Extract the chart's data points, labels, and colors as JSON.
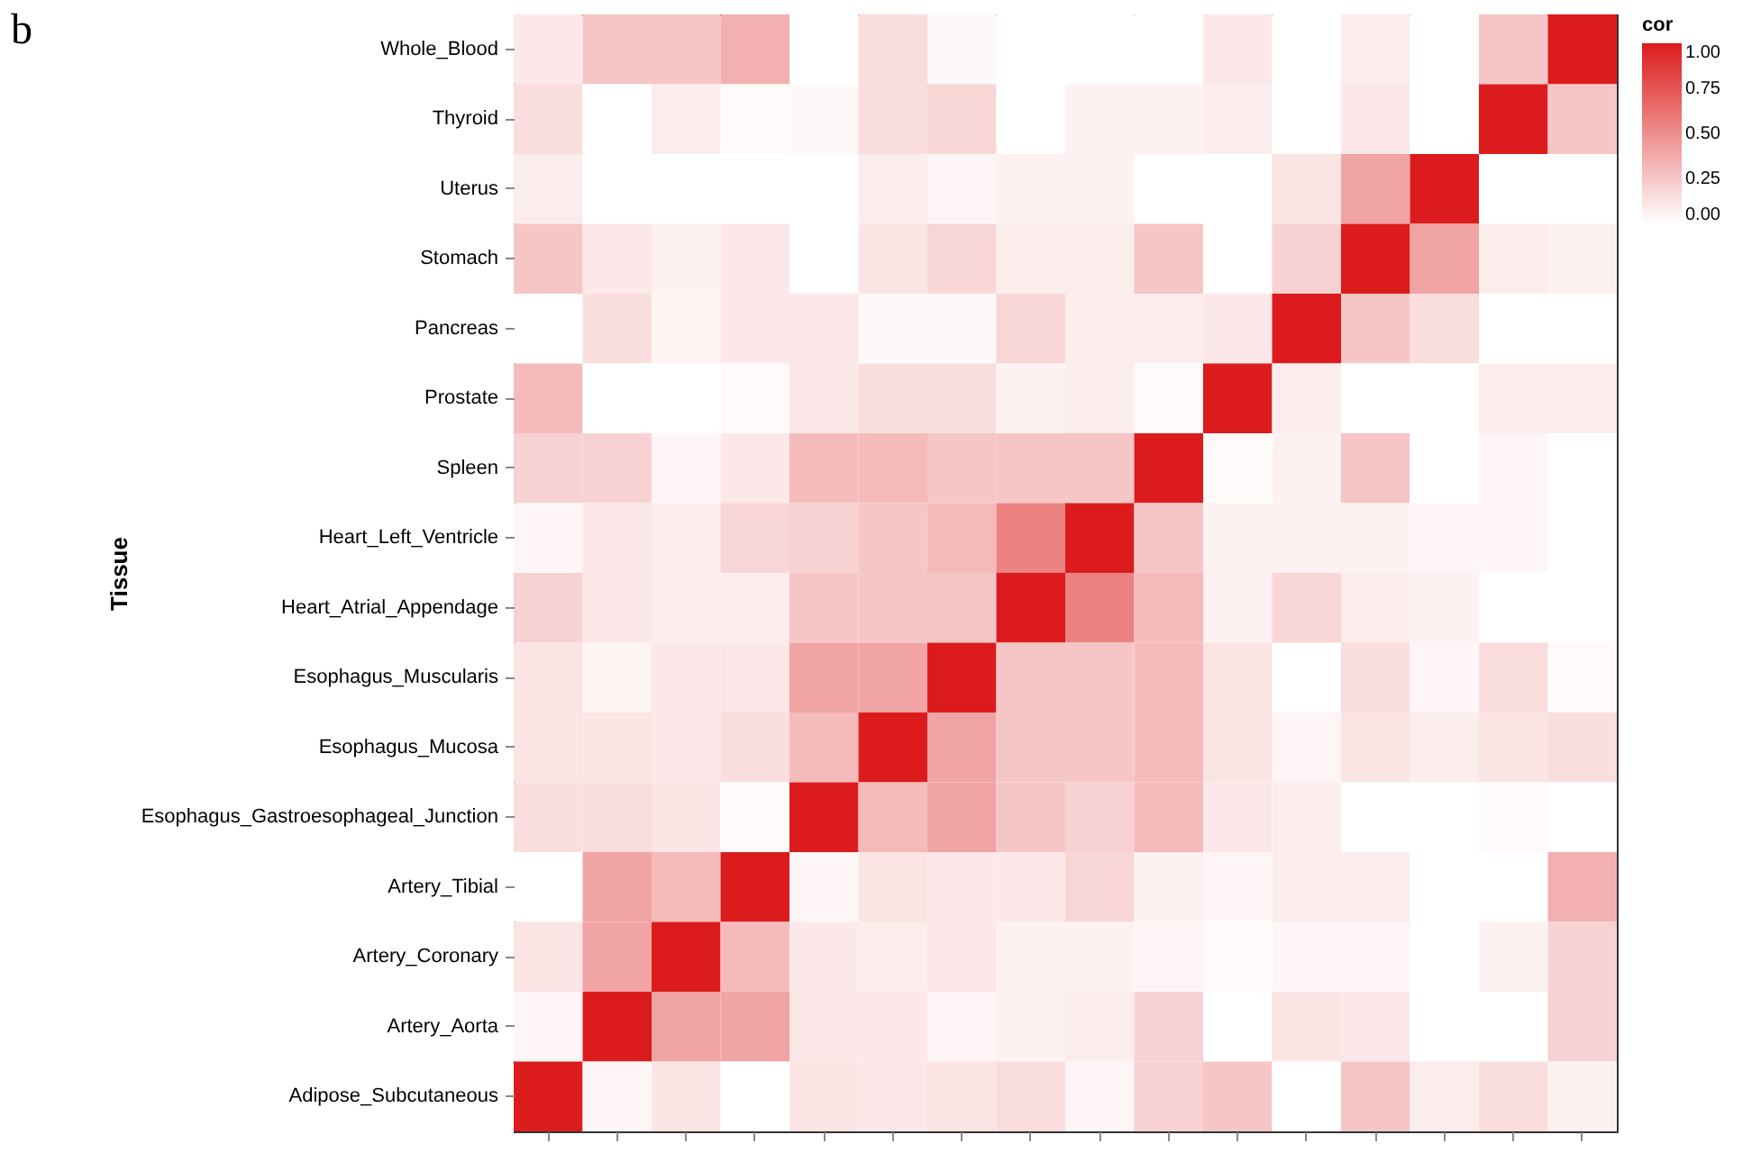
{
  "chart_data": {
    "type": "heatmap",
    "ylabel": "Tissue",
    "clabel": "cor",
    "annotations": [
      "b"
    ],
    "tick_labels": "y",
    "categories": [
      null,
      null,
      null,
      null,
      null,
      null,
      null,
      null,
      null,
      null,
      null,
      null,
      null,
      null,
      null,
      null
    ],
    "y_categories": [
      "Whole_Blood",
      "Thyroid",
      "Uterus",
      "Stomach",
      "Pancreas",
      "Prostate",
      "Spleen",
      "Heart_Left_Ventricle",
      "Heart_Atrial_Appendage",
      "Esophagus_Muscularis",
      "Esophagus_Mucosa",
      "Esophagus_Gastroesophageal_Junction",
      "Artery_Tibial",
      "Artery_Coronary",
      "Artery_Aorta",
      "Adipose_Subcutaneous"
    ],
    "cells": [
      [
        0.1,
        0.25,
        0.25,
        0.35,
        0,
        0.15,
        0.03,
        0,
        0,
        0,
        0.1,
        0,
        0.08,
        0,
        0.25,
        1
      ],
      [
        0.15,
        0,
        0.08,
        0.02,
        0.03,
        0.15,
        0.18,
        0,
        0.06,
        0.06,
        0.08,
        0,
        0.1,
        0,
        1,
        0.25
      ],
      [
        0.08,
        0,
        0,
        0,
        0,
        0.08,
        0.04,
        0.06,
        0.06,
        0,
        0,
        0.12,
        0.4,
        1,
        0,
        0
      ],
      [
        0.25,
        0.1,
        0.06,
        0.1,
        0,
        0.12,
        0.18,
        0.08,
        0.08,
        0.25,
        0,
        0.2,
        1,
        0.4,
        0.08,
        0.06
      ],
      [
        0,
        0.15,
        0.05,
        0.1,
        0.1,
        0.03,
        0.03,
        0.18,
        0.08,
        0.08,
        0.1,
        1,
        0.25,
        0.15,
        0,
        0
      ],
      [
        0.3,
        0,
        0,
        0.02,
        0.1,
        0.15,
        0.15,
        0.06,
        0.08,
        0.02,
        1,
        0.08,
        0,
        0,
        0.08,
        0.08
      ],
      [
        0.2,
        0.2,
        0.04,
        0.1,
        0.3,
        0.3,
        0.25,
        0.25,
        0.25,
        1,
        0.02,
        0.06,
        0.25,
        0,
        0.04,
        0
      ],
      [
        0.04,
        0.1,
        0.08,
        0.18,
        0.2,
        0.25,
        0.3,
        0.55,
        1,
        0.25,
        0.06,
        0.06,
        0.06,
        0.04,
        0.04,
        0
      ],
      [
        0.2,
        0.1,
        0.08,
        0.08,
        0.25,
        0.25,
        0.25,
        1,
        0.55,
        0.3,
        0.06,
        0.18,
        0.08,
        0.06,
        0,
        0
      ],
      [
        0.12,
        0.05,
        0.1,
        0.1,
        0.4,
        0.4,
        1,
        0.25,
        0.25,
        0.3,
        0.12,
        0,
        0.15,
        0.04,
        0.15,
        0.02
      ],
      [
        0.12,
        0.12,
        0.1,
        0.15,
        0.3,
        1,
        0.4,
        0.25,
        0.25,
        0.3,
        0.12,
        0.04,
        0.12,
        0.08,
        0.12,
        0.15
      ],
      [
        0.15,
        0.15,
        0.12,
        0.02,
        1,
        0.3,
        0.4,
        0.25,
        0.2,
        0.3,
        0.1,
        0.08,
        0,
        0,
        0.02,
        0
      ],
      [
        0,
        0.4,
        0.3,
        1,
        0.04,
        0.12,
        0.1,
        0.1,
        0.18,
        0.06,
        0.04,
        0.08,
        0.08,
        0,
        0,
        0.35
      ],
      [
        0.12,
        0.4,
        1,
        0.3,
        0.1,
        0.08,
        0.1,
        0.06,
        0.06,
        0.04,
        0.02,
        0.04,
        0.04,
        0,
        0.06,
        0.2
      ],
      [
        0.04,
        1,
        0.4,
        0.4,
        0.1,
        0.1,
        0.04,
        0.06,
        0.08,
        0.2,
        0,
        0.12,
        0.1,
        0,
        0,
        0.2
      ],
      [
        1,
        0.04,
        0.12,
        0,
        0.12,
        0.1,
        0.12,
        0.15,
        0.04,
        0.2,
        0.25,
        0,
        0.25,
        0.08,
        0.15,
        0.06
      ]
    ],
    "colors": [
      "#ffffff",
      "#dc1c1c"
    ],
    "clim": [
      0,
      1
    ],
    "cticks": [
      {
        "value": 0,
        "label": "0.00"
      },
      {
        "value": 0.25,
        "label": "0.25"
      },
      {
        "value": 0.5,
        "label": "0.50"
      },
      {
        "value": 0.75,
        "label": "0.75"
      },
      {
        "value": 1,
        "label": "1.00"
      }
    ]
  }
}
